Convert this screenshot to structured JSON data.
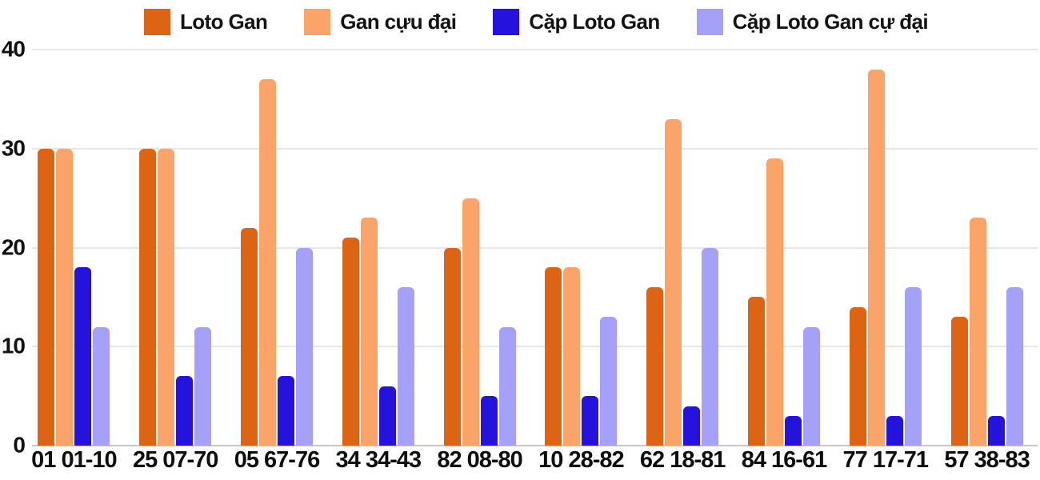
{
  "colors": {
    "background": "#FFFFFF",
    "text": "#111111",
    "gridline": "#E9E7E5",
    "baseline": "#C8C8C8"
  },
  "chart_data": {
    "type": "bar",
    "title": "",
    "xlabel": "",
    "ylabel": "",
    "ylim": [
      0,
      40
    ],
    "yticks": [
      0,
      10,
      20,
      30,
      40
    ],
    "grid": true,
    "legend_position": "top",
    "categories": [
      "01 01-10",
      "25 07-70",
      "05 67-76",
      "34 34-43",
      "82 08-80",
      "10 28-82",
      "62 18-81",
      "84 16-61",
      "77 17-71",
      "57 38-83"
    ],
    "series": [
      {
        "name": "Loto Gan",
        "color": "#DD6414",
        "values": [
          30,
          30,
          22,
          21,
          20,
          18,
          16,
          15,
          14,
          13
        ]
      },
      {
        "name": "Gan cựu đại",
        "color": "#FBA46A",
        "values": [
          30,
          30,
          37,
          23,
          25,
          18,
          33,
          29,
          38,
          23
        ]
      },
      {
        "name": "Cặp Loto Gan",
        "color": "#2512DC",
        "values": [
          18,
          7,
          7,
          6,
          5,
          5,
          4,
          3,
          3,
          3
        ]
      },
      {
        "name": "Cặp Loto Gan cự đại",
        "color": "#A5A0F8",
        "values": [
          12,
          12,
          20,
          16,
          12,
          13,
          20,
          12,
          16,
          16
        ]
      }
    ]
  }
}
